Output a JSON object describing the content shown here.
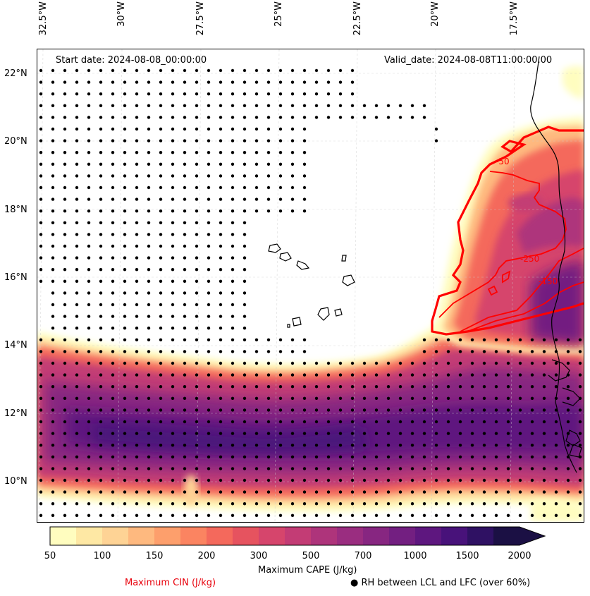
{
  "header": {
    "start_date": "Start date: 2024-08-08_00:00:00",
    "valid_date": "Valid_date: 2024-08-08T11:00:00.00"
  },
  "axes": {
    "longitudes": [
      "32.5°W",
      "30°W",
      "27.5°W",
      "25°W",
      "22.5°W",
      "20°W",
      "17.5°W"
    ],
    "latitudes": [
      "22°N",
      "20°N",
      "18°N",
      "16°N",
      "14°N",
      "12°N",
      "10°N"
    ]
  },
  "contours": {
    "cin_labels": [
      "-50",
      "-250",
      "-150"
    ]
  },
  "colorbar": {
    "title": "Maximum CAPE (J/kg)",
    "ticks": [
      "50",
      "100",
      "150",
      "200",
      "300",
      "500",
      "700",
      "1000",
      "1500",
      "2000"
    ],
    "colors": [
      "#fffdbf",
      "#fee8a4",
      "#fed395",
      "#feb97f",
      "#fd9f6c",
      "#fb8461",
      "#f4695c",
      "#e6535f",
      "#d6456c",
      "#c33c75",
      "#ae347b",
      "#9a2d80",
      "#872681",
      "#731f81",
      "#5e177f",
      "#48127a",
      "#2f1163",
      "#1b1044"
    ]
  },
  "legend": {
    "cin": "Maximum CIN (J/kg)",
    "rh": "● RH between LCL and LFC (over 60%)"
  }
}
